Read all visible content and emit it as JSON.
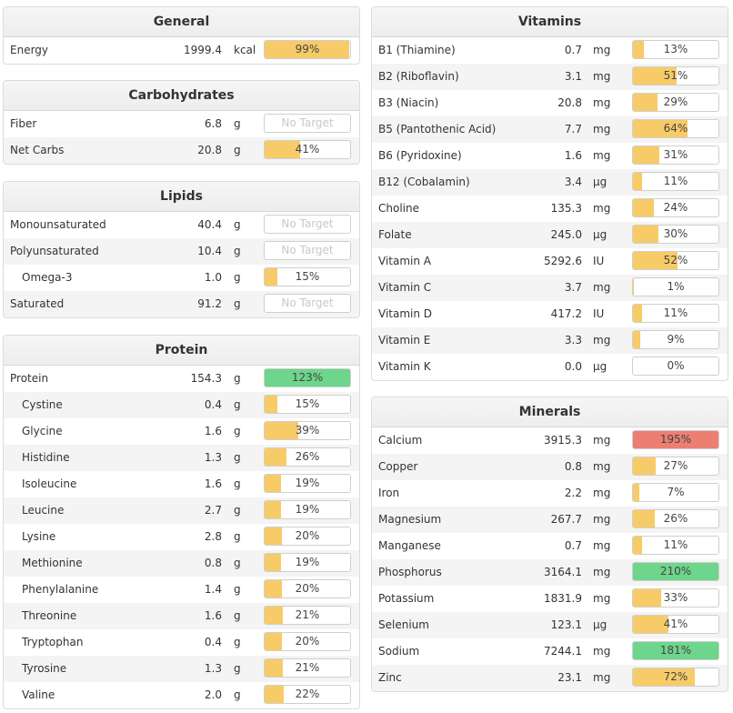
{
  "colors": {
    "yellow": "#f8cb69",
    "green": "#6dd58c",
    "red": "#ec7f72"
  },
  "no_target_label": "No Target",
  "panels": {
    "general": {
      "title": "General",
      "rows": [
        {
          "name": "Energy",
          "value": "1999.4",
          "unit": "kcal",
          "pct": "99%",
          "fill": 99,
          "status": "yellow"
        }
      ]
    },
    "carbs": {
      "title": "Carbohydrates",
      "rows": [
        {
          "name": "Fiber",
          "value": "6.8",
          "unit": "g",
          "pct": null,
          "fill": 0,
          "status": "none"
        },
        {
          "name": "Net Carbs",
          "value": "20.8",
          "unit": "g",
          "pct": "41%",
          "fill": 41,
          "status": "yellow"
        }
      ]
    },
    "lipids": {
      "title": "Lipids",
      "rows": [
        {
          "name": "Monounsaturated",
          "value": "40.4",
          "unit": "g",
          "pct": null,
          "fill": 0,
          "status": "none"
        },
        {
          "name": "Polyunsaturated",
          "value": "10.4",
          "unit": "g",
          "pct": null,
          "fill": 0,
          "status": "none"
        },
        {
          "name": "Omega-3",
          "value": "1.0",
          "unit": "g",
          "pct": "15%",
          "fill": 15,
          "status": "yellow",
          "indent": true
        },
        {
          "name": "Saturated",
          "value": "91.2",
          "unit": "g",
          "pct": null,
          "fill": 0,
          "status": "none"
        }
      ]
    },
    "protein": {
      "title": "Protein",
      "rows": [
        {
          "name": "Protein",
          "value": "154.3",
          "unit": "g",
          "pct": "123%",
          "fill": 100,
          "status": "green"
        },
        {
          "name": "Cystine",
          "value": "0.4",
          "unit": "g",
          "pct": "15%",
          "fill": 15,
          "status": "yellow",
          "indent": true
        },
        {
          "name": "Glycine",
          "value": "1.6",
          "unit": "g",
          "pct": "39%",
          "fill": 39,
          "status": "yellow",
          "indent": true
        },
        {
          "name": "Histidine",
          "value": "1.3",
          "unit": "g",
          "pct": "26%",
          "fill": 26,
          "status": "yellow",
          "indent": true
        },
        {
          "name": "Isoleucine",
          "value": "1.6",
          "unit": "g",
          "pct": "19%",
          "fill": 19,
          "status": "yellow",
          "indent": true
        },
        {
          "name": "Leucine",
          "value": "2.7",
          "unit": "g",
          "pct": "19%",
          "fill": 19,
          "status": "yellow",
          "indent": true
        },
        {
          "name": "Lysine",
          "value": "2.8",
          "unit": "g",
          "pct": "20%",
          "fill": 20,
          "status": "yellow",
          "indent": true
        },
        {
          "name": "Methionine",
          "value": "0.8",
          "unit": "g",
          "pct": "19%",
          "fill": 19,
          "status": "yellow",
          "indent": true
        },
        {
          "name": "Phenylalanine",
          "value": "1.4",
          "unit": "g",
          "pct": "20%",
          "fill": 20,
          "status": "yellow",
          "indent": true
        },
        {
          "name": "Threonine",
          "value": "1.6",
          "unit": "g",
          "pct": "21%",
          "fill": 21,
          "status": "yellow",
          "indent": true
        },
        {
          "name": "Tryptophan",
          "value": "0.4",
          "unit": "g",
          "pct": "20%",
          "fill": 20,
          "status": "yellow",
          "indent": true
        },
        {
          "name": "Tyrosine",
          "value": "1.3",
          "unit": "g",
          "pct": "21%",
          "fill": 21,
          "status": "yellow",
          "indent": true
        },
        {
          "name": "Valine",
          "value": "2.0",
          "unit": "g",
          "pct": "22%",
          "fill": 22,
          "status": "yellow",
          "indent": true
        }
      ]
    },
    "vitamins": {
      "title": "Vitamins",
      "rows": [
        {
          "name": "B1 (Thiamine)",
          "value": "0.7",
          "unit": "mg",
          "pct": "13%",
          "fill": 13,
          "status": "yellow"
        },
        {
          "name": "B2 (Riboflavin)",
          "value": "3.1",
          "unit": "mg",
          "pct": "51%",
          "fill": 51,
          "status": "yellow"
        },
        {
          "name": "B3 (Niacin)",
          "value": "20.8",
          "unit": "mg",
          "pct": "29%",
          "fill": 29,
          "status": "yellow"
        },
        {
          "name": "B5 (Pantothenic Acid)",
          "value": "7.7",
          "unit": "mg",
          "pct": "64%",
          "fill": 64,
          "status": "yellow"
        },
        {
          "name": "B6 (Pyridoxine)",
          "value": "1.6",
          "unit": "mg",
          "pct": "31%",
          "fill": 31,
          "status": "yellow"
        },
        {
          "name": "B12 (Cobalamin)",
          "value": "3.4",
          "unit": "µg",
          "pct": "11%",
          "fill": 11,
          "status": "yellow"
        },
        {
          "name": "Choline",
          "value": "135.3",
          "unit": "mg",
          "pct": "24%",
          "fill": 24,
          "status": "yellow"
        },
        {
          "name": "Folate",
          "value": "245.0",
          "unit": "µg",
          "pct": "30%",
          "fill": 30,
          "status": "yellow"
        },
        {
          "name": "Vitamin A",
          "value": "5292.6",
          "unit": "IU",
          "pct": "52%",
          "fill": 52,
          "status": "yellow"
        },
        {
          "name": "Vitamin C",
          "value": "3.7",
          "unit": "mg",
          "pct": "1%",
          "fill": 1,
          "status": "yellow"
        },
        {
          "name": "Vitamin D",
          "value": "417.2",
          "unit": "IU",
          "pct": "11%",
          "fill": 11,
          "status": "yellow"
        },
        {
          "name": "Vitamin E",
          "value": "3.3",
          "unit": "mg",
          "pct": "9%",
          "fill": 9,
          "status": "yellow"
        },
        {
          "name": "Vitamin K",
          "value": "0.0",
          "unit": "µg",
          "pct": "0%",
          "fill": 0,
          "status": "yellow"
        }
      ]
    },
    "minerals": {
      "title": "Minerals",
      "rows": [
        {
          "name": "Calcium",
          "value": "3915.3",
          "unit": "mg",
          "pct": "195%",
          "fill": 100,
          "status": "red"
        },
        {
          "name": "Copper",
          "value": "0.8",
          "unit": "mg",
          "pct": "27%",
          "fill": 27,
          "status": "yellow"
        },
        {
          "name": "Iron",
          "value": "2.2",
          "unit": "mg",
          "pct": "7%",
          "fill": 7,
          "status": "yellow"
        },
        {
          "name": "Magnesium",
          "value": "267.7",
          "unit": "mg",
          "pct": "26%",
          "fill": 26,
          "status": "yellow"
        },
        {
          "name": "Manganese",
          "value": "0.7",
          "unit": "mg",
          "pct": "11%",
          "fill": 11,
          "status": "yellow"
        },
        {
          "name": "Phosphorus",
          "value": "3164.1",
          "unit": "mg",
          "pct": "210%",
          "fill": 100,
          "status": "green"
        },
        {
          "name": "Potassium",
          "value": "1831.9",
          "unit": "mg",
          "pct": "33%",
          "fill": 33,
          "status": "yellow"
        },
        {
          "name": "Selenium",
          "value": "123.1",
          "unit": "µg",
          "pct": "41%",
          "fill": 41,
          "status": "yellow"
        },
        {
          "name": "Sodium",
          "value": "7244.1",
          "unit": "mg",
          "pct": "181%",
          "fill": 100,
          "status": "green"
        },
        {
          "name": "Zinc",
          "value": "23.1",
          "unit": "mg",
          "pct": "72%",
          "fill": 72,
          "status": "yellow"
        }
      ]
    }
  }
}
